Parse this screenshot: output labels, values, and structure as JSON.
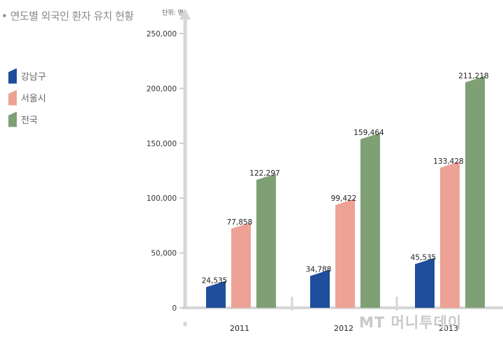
{
  "chart_data": {
    "type": "bar",
    "title": "연도별 외국인 환자 유치 현황",
    "unit_label": "단위: 명",
    "categories": [
      "2011",
      "2012",
      "2013"
    ],
    "series": [
      {
        "name": "강남구",
        "values": [
          24535,
          34788,
          45535
        ],
        "labels": [
          "24,535",
          "34,788",
          "45,535"
        ],
        "color": "#1f4e9c"
      },
      {
        "name": "서울시",
        "values": [
          77858,
          99422,
          133428
        ],
        "labels": [
          "77,858",
          "99,422",
          "133,428"
        ],
        "color": "#eda295"
      },
      {
        "name": "전국",
        "values": [
          122297,
          159464,
          211218
        ],
        "labels": [
          "122,297",
          "159,464",
          "211,218"
        ],
        "color": "#7f9f75"
      }
    ],
    "ylim": [
      0,
      250000
    ],
    "yticks": [
      0,
      50000,
      100000,
      150000,
      200000,
      250000
    ],
    "ytick_labels": [
      "0",
      "50,000",
      "100,000",
      "150,000",
      "200,000",
      "250,000"
    ],
    "grid": false,
    "legend_position": "left"
  },
  "watermark": "MT 머니투데이"
}
